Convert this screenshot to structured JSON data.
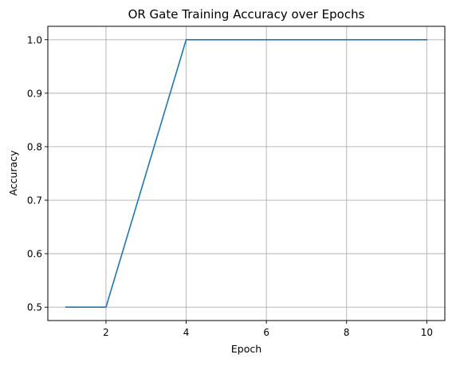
{
  "chart_data": {
    "type": "line",
    "title": "OR Gate Training Accuracy over Epochs",
    "xlabel": "Epoch",
    "ylabel": "Accuracy",
    "x": [
      1,
      2,
      3,
      4,
      5,
      6,
      7,
      8,
      9,
      10
    ],
    "series": [
      {
        "values": [
          0.5,
          0.5,
          0.75,
          1.0,
          1.0,
          1.0,
          1.0,
          1.0,
          1.0,
          1.0
        ],
        "color": "#1f77b4"
      }
    ],
    "xlim": [
      0.55,
      10.45
    ],
    "ylim": [
      0.475,
      1.025
    ],
    "xticks": [
      2,
      4,
      6,
      8,
      10
    ],
    "yticks": [
      0.5,
      0.6,
      0.7,
      0.8,
      0.9,
      1.0
    ],
    "ytick_labels": [
      "0.5",
      "0.6",
      "0.7",
      "0.8",
      "0.9",
      "1.0"
    ],
    "grid": true,
    "grid_color": "#b0b0b0"
  }
}
